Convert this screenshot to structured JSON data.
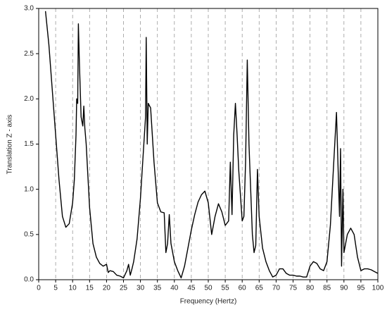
{
  "chart_data": {
    "type": "line",
    "x_label": "Frequency (Hertz)",
    "y_label": "Translation Z - axis",
    "x": [
      2,
      3,
      4,
      5,
      6,
      7,
      8,
      9,
      10,
      10.5,
      11,
      11.2,
      11.5,
      11.7,
      12,
      12.5,
      13,
      13.3,
      13.6,
      14,
      15,
      16,
      17,
      18,
      19,
      20,
      20.5,
      21,
      22,
      23,
      24,
      25,
      26,
      26.5,
      27,
      27.5,
      28,
      29,
      30,
      31,
      31.5,
      31.7,
      32,
      32.3,
      33,
      34,
      35,
      36,
      37,
      37.5,
      38,
      38.5,
      39,
      40,
      41,
      42,
      43,
      44,
      45,
      46,
      47,
      48,
      49,
      50,
      51,
      52,
      53,
      54,
      55,
      56,
      56.5,
      57,
      57.5,
      58,
      58.5,
      59,
      60,
      60.5,
      61,
      61.5,
      62,
      63,
      63.5,
      64,
      64.5,
      65,
      66,
      67,
      68,
      69,
      70,
      71,
      72,
      73,
      74,
      75,
      76,
      77,
      78,
      79,
      80,
      81,
      82,
      83,
      84,
      85,
      86,
      87,
      87.8,
      88.3,
      88.7,
      89,
      89.3,
      89.7,
      90,
      91,
      92,
      93,
      94,
      95,
      96,
      97,
      98,
      99,
      100
    ],
    "series": [
      {
        "color": "#000000",
        "values": [
          2.97,
          2.6,
          2.1,
          1.6,
          1.1,
          0.7,
          0.58,
          0.62,
          0.85,
          1.1,
          1.6,
          2.0,
          1.95,
          2.83,
          2.4,
          1.8,
          1.7,
          1.92,
          1.68,
          1.5,
          0.8,
          0.4,
          0.25,
          0.18,
          0.15,
          0.17,
          0.08,
          0.1,
          0.09,
          0.05,
          0.04,
          0.02,
          0.1,
          0.17,
          0.05,
          0.12,
          0.2,
          0.45,
          0.9,
          1.5,
          1.8,
          2.68,
          1.5,
          1.95,
          1.9,
          1.3,
          0.85,
          0.75,
          0.74,
          0.3,
          0.4,
          0.72,
          0.4,
          0.2,
          0.1,
          0.02,
          0.15,
          0.35,
          0.55,
          0.72,
          0.86,
          0.94,
          0.98,
          0.85,
          0.5,
          0.7,
          0.84,
          0.75,
          0.6,
          0.65,
          1.3,
          0.72,
          1.6,
          1.95,
          1.6,
          1.2,
          0.65,
          0.7,
          1.3,
          2.43,
          1.5,
          0.5,
          0.3,
          0.38,
          1.22,
          0.7,
          0.35,
          0.2,
          0.1,
          0.03,
          0.05,
          0.12,
          0.12,
          0.07,
          0.05,
          0.05,
          0.04,
          0.04,
          0.03,
          0.03,
          0.15,
          0.2,
          0.18,
          0.12,
          0.1,
          0.2,
          0.6,
          1.3,
          1.85,
          1.2,
          0.7,
          1.45,
          0.15,
          1.0,
          0.3,
          0.5,
          0.57,
          0.5,
          0.25,
          0.1,
          0.12,
          0.12,
          0.11,
          0.09,
          0.07
        ]
      }
    ],
    "xlim": [
      0,
      100
    ],
    "xticks": [
      0,
      5,
      10,
      15,
      20,
      25,
      30,
      35,
      40,
      45,
      50,
      55,
      60,
      65,
      70,
      75,
      80,
      85,
      90,
      95,
      100
    ],
    "ylim": [
      0,
      3.0
    ],
    "yticks": [
      {
        "value": 0,
        "label": "0.0"
      },
      {
        "value": 0.5,
        "label": "0.5"
      },
      {
        "value": 1,
        "label": "1.0"
      },
      {
        "value": 1.5,
        "label": "1.5"
      },
      {
        "value": 2,
        "label": "2.0"
      },
      {
        "value": 2.5,
        "label": "2.5"
      },
      {
        "value": 3,
        "label": "3.0"
      }
    ],
    "grid": "x"
  }
}
